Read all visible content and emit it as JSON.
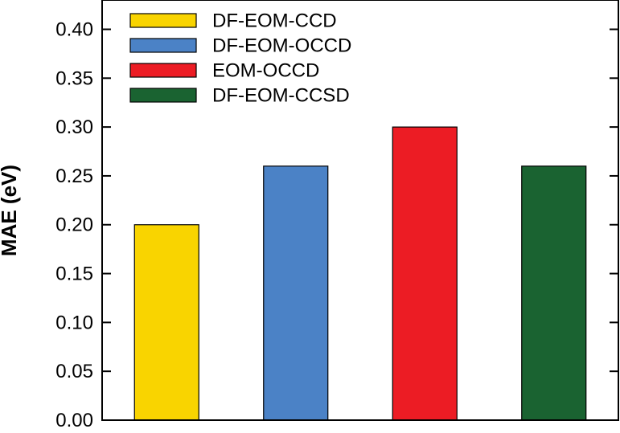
{
  "chart_data": {
    "type": "bar",
    "title": "",
    "xlabel": "",
    "ylabel": "MAE (eV)",
    "ylim": [
      0,
      0.43
    ],
    "yticks": [
      "0.00",
      "0.05",
      "0.10",
      "0.15",
      "0.20",
      "0.25",
      "0.30",
      "0.35",
      "0.40"
    ],
    "grid": false,
    "legend_position": "top-left",
    "categories": [
      "DF-EOM-CCD",
      "DF-EOM-OCCD",
      "EOM-OCCD",
      "DF-EOM-CCSD"
    ],
    "values": [
      0.2,
      0.26,
      0.3,
      0.26
    ],
    "colors": [
      "#f9d400",
      "#4b82c6",
      "#ec1c24",
      "#1a6331"
    ],
    "legend": [
      {
        "label": "DF-EOM-CCD",
        "color": "#f9d400"
      },
      {
        "label": "DF-EOM-OCCD",
        "color": "#4b82c6"
      },
      {
        "label": "EOM-OCCD",
        "color": "#ec1c24"
      },
      {
        "label": "DF-EOM-CCSD",
        "color": "#1a6331"
      }
    ]
  }
}
